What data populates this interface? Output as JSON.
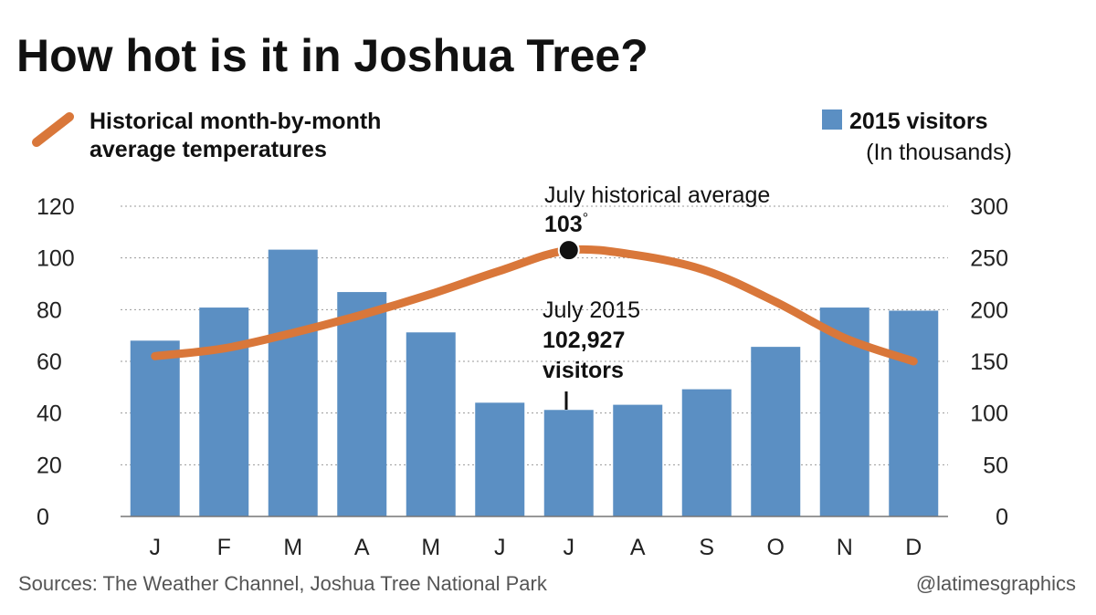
{
  "title": "How hot is it in Joshua Tree?",
  "legend": {
    "line_label_1": "Historical month-by-month",
    "line_label_2": "average temperatures",
    "bar_label": "2015 visitors",
    "bar_unit": "(In thousands)"
  },
  "annotations": {
    "peak_label": "July historical average",
    "peak_value": "103",
    "peak_degree": "°",
    "july_label": "July 2015",
    "july_value": "102,927",
    "july_unit": "visitors"
  },
  "footer": {
    "sources": "Sources: The Weather Channel, Joshua Tree National Park",
    "credit": "@latimesgraphics"
  },
  "colors": {
    "bar": "#5b8fc3",
    "line": "#d9773a",
    "marker": "#111111"
  },
  "chart_data": {
    "type": "bar",
    "categories": [
      "J",
      "F",
      "M",
      "A",
      "M",
      "J",
      "J",
      "A",
      "S",
      "O",
      "N",
      "D"
    ],
    "series": [
      {
        "name": "2015 visitors",
        "type": "bar",
        "axis": "right",
        "values": [
          170,
          202,
          258,
          217,
          178,
          110,
          103,
          108,
          123,
          164,
          202,
          199
        ]
      },
      {
        "name": "Historical month-by-month average temperatures",
        "type": "line",
        "axis": "left",
        "values": [
          62,
          65,
          71,
          78,
          86,
          95,
          103,
          101,
          95,
          83,
          69,
          60
        ]
      }
    ],
    "left_axis": {
      "ylim": [
        0,
        120
      ],
      "ticks": [
        "0",
        "20",
        "40",
        "60",
        "80",
        "100",
        "120"
      ]
    },
    "right_axis": {
      "ylim": [
        0,
        300
      ],
      "ticks": [
        "0",
        "50",
        "100",
        "150",
        "200",
        "250",
        "300"
      ]
    },
    "grid": true,
    "legend_position": "top"
  }
}
